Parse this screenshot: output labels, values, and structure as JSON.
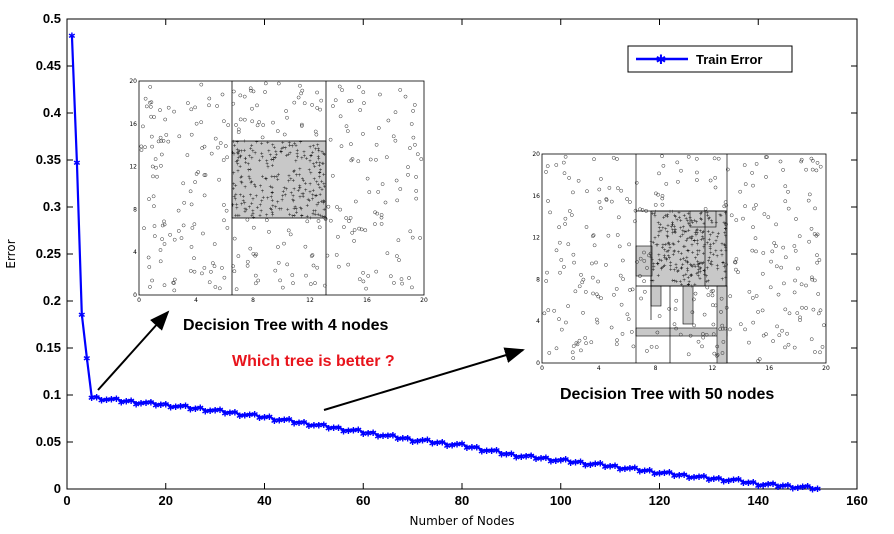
{
  "chart_data": {
    "type": "line",
    "title": "",
    "xlabel": "Number of Nodes",
    "ylabel": "Error",
    "xlim": [
      0,
      160
    ],
    "ylim": [
      0,
      0.5
    ],
    "xticks": [
      "0",
      "20",
      "40",
      "60",
      "80",
      "100",
      "120",
      "140",
      "160"
    ],
    "yticks": [
      "0",
      "0.05",
      "0.1",
      "0.15",
      "0.2",
      "0.25",
      "0.3",
      "0.35",
      "0.4",
      "0.45",
      "0.5"
    ],
    "grid": false,
    "legend_position": "top-right",
    "series": [
      {
        "name": "Train Error",
        "color": "#0000ff",
        "marker": "asterisk",
        "x": [
          1,
          2,
          3,
          4,
          5,
          10,
          20,
          30,
          40,
          50,
          60,
          70,
          80,
          90,
          100,
          110,
          120,
          130,
          135,
          140,
          145,
          150,
          152
        ],
        "y": [
          0.483,
          0.348,
          0.186,
          0.14,
          0.098,
          0.095,
          0.09,
          0.084,
          0.077,
          0.069,
          0.061,
          0.053,
          0.047,
          0.037,
          0.031,
          0.025,
          0.018,
          0.012,
          0.01,
          0.006,
          0.004,
          0.002,
          0.001
        ]
      }
    ],
    "annotations": {
      "tree4_label": "Decision Tree with 4 nodes",
      "tree50_label": "Decision Tree with 50 nodes",
      "question": "Which tree is better ?"
    },
    "inset_axes": {
      "xticks": [
        "0",
        "4",
        "8",
        "12",
        "16",
        "20"
      ],
      "yticks": [
        "0",
        "4",
        "8",
        "12",
        "16",
        "20"
      ]
    }
  },
  "colors": {
    "line": "#0000ff",
    "question": "#e8141c",
    "region_shade": "#c8c8c8"
  }
}
